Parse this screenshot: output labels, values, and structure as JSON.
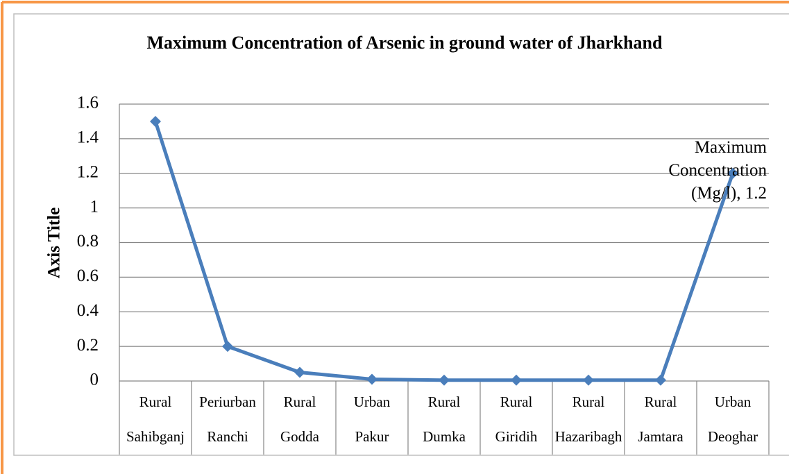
{
  "chart_data": {
    "type": "line",
    "title": "Maximum Concentration of Arsenic in ground water of Jharkhand",
    "y_axis_label": "Axis Title",
    "categories": [
      [
        "Rural",
        "Sahibganj"
      ],
      [
        "Periurban",
        "Ranchi"
      ],
      [
        "Rural",
        "Godda"
      ],
      [
        "Urban",
        "Pakur"
      ],
      [
        "Rural",
        "Dumka"
      ],
      [
        "Rural",
        "Giridih"
      ],
      [
        "Rural",
        "Hazaribagh"
      ],
      [
        "Rural",
        "Jamtara"
      ],
      [
        "Urban",
        "Deoghar"
      ]
    ],
    "series": [
      {
        "name": "Maximum Concentration (Mg/l)",
        "color": "#4a7ebb",
        "values": [
          1.5,
          0.2,
          0.05,
          0.01,
          0.005,
          0.005,
          0.005,
          0.005,
          1.2
        ],
        "value_labels": [
          null,
          null,
          null,
          null,
          null,
          null,
          null,
          null,
          "Maximum Concentration (Mg/l), 1.2"
        ]
      }
    ],
    "ylim": [
      0,
      1.6
    ],
    "yticks": [
      0,
      0.2,
      0.4,
      0.6,
      0.8,
      1,
      1.2,
      1.4,
      1.6
    ],
    "grid": true
  }
}
